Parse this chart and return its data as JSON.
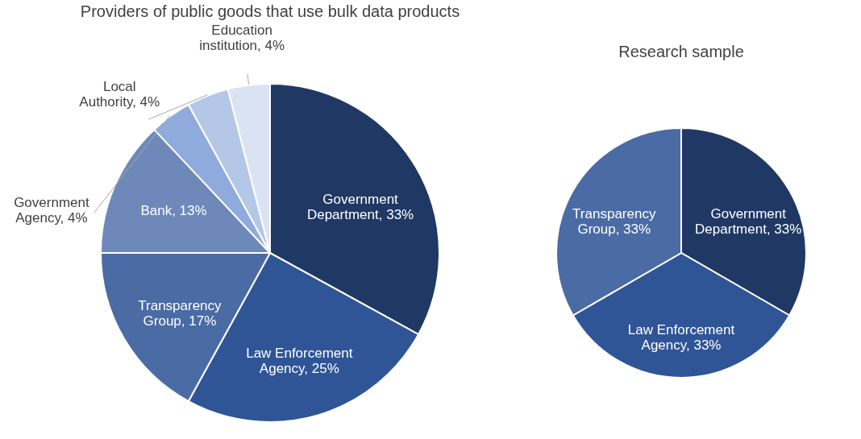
{
  "chart_data": [
    {
      "type": "pie",
      "title": "Providers of public goods that use bulk data products",
      "categories": [
        "Government Department",
        "Law Enforcement Agency",
        "Transparency Group",
        "Bank",
        "Government Agency",
        "Local Authority",
        "Education institution"
      ],
      "values": [
        33,
        25,
        17,
        13,
        4,
        4,
        4
      ],
      "value_labels": [
        "33%",
        "25%",
        "17%",
        "13%",
        "4%",
        "4%",
        "4%"
      ],
      "colors": [
        "#203864",
        "#2f5597",
        "#4a6ba4",
        "#6e88ba",
        "#8faadc",
        "#b4c7e7",
        "#dae3f3"
      ],
      "legend": false
    },
    {
      "type": "pie",
      "title": "Research sample",
      "categories": [
        "Government Department",
        "Law Enforcement Agency",
        "Transparency Group"
      ],
      "values": [
        33,
        33,
        33
      ],
      "value_labels": [
        "33%",
        "33%",
        "33%"
      ],
      "colors": [
        "#203864",
        "#2f5597",
        "#4a6ba4"
      ],
      "legend": false
    }
  ]
}
